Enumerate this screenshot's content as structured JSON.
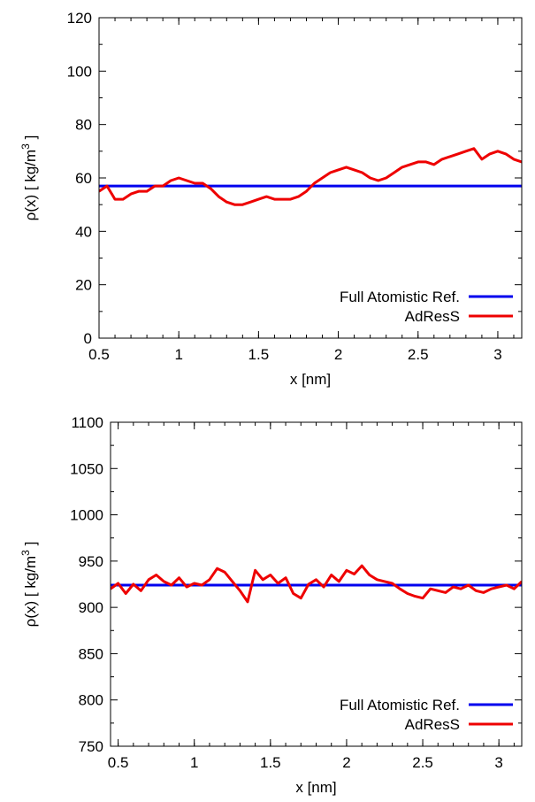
{
  "chart_data": [
    {
      "type": "line",
      "xlabel": "x [nm]",
      "ylabel": "ρ(x) [ kg/m",
      "ylabel_sup": "3",
      "ylabel_end": " ]",
      "xlim": [
        0.5,
        3.15
      ],
      "ylim": [
        0,
        120
      ],
      "xticks": [
        0.5,
        1,
        1.5,
        2,
        2.5,
        3
      ],
      "xtick_labels": [
        "0.5",
        "1",
        "1.5",
        "2",
        "2.5",
        "3"
      ],
      "yticks": [
        0,
        20,
        40,
        60,
        80,
        100,
        120
      ],
      "ytick_labels": [
        "0",
        "20",
        "40",
        "60",
        "80",
        "100",
        "120"
      ],
      "legend_position": "bottom-right",
      "series": [
        {
          "name": "Full Atomistic Ref.",
          "color": "#0000ee",
          "x": [
            0.5,
            3.15
          ],
          "y": [
            57,
            57
          ]
        },
        {
          "name": "AdResS",
          "color": "#ee0000",
          "x": [
            0.5,
            0.55,
            0.6,
            0.65,
            0.7,
            0.75,
            0.8,
            0.85,
            0.9,
            0.95,
            1.0,
            1.05,
            1.1,
            1.15,
            1.2,
            1.25,
            1.3,
            1.35,
            1.4,
            1.45,
            1.5,
            1.55,
            1.6,
            1.65,
            1.7,
            1.75,
            1.8,
            1.85,
            1.9,
            1.95,
            2.0,
            2.05,
            2.1,
            2.15,
            2.2,
            2.25,
            2.3,
            2.35,
            2.4,
            2.45,
            2.5,
            2.55,
            2.6,
            2.65,
            2.7,
            2.75,
            2.8,
            2.85,
            2.9,
            2.95,
            3.0,
            3.05,
            3.1,
            3.15
          ],
          "y": [
            55,
            57,
            52,
            52,
            54,
            55,
            55,
            57,
            57,
            59,
            60,
            59,
            58,
            58,
            56,
            53,
            51,
            50,
            50,
            51,
            52,
            53,
            52,
            52,
            52,
            53,
            55,
            58,
            60,
            62,
            63,
            64,
            63,
            62,
            60,
            59,
            60,
            62,
            64,
            65,
            66,
            66,
            65,
            67,
            68,
            69,
            70,
            71,
            67,
            69,
            70,
            69,
            67,
            66
          ]
        }
      ]
    },
    {
      "type": "line",
      "xlabel": "x [nm]",
      "ylabel": "ρ(x) [ kg/m",
      "ylabel_sup": "3",
      "ylabel_end": " ]",
      "xlim": [
        0.45,
        3.15
      ],
      "ylim": [
        750,
        1100
      ],
      "xticks": [
        0.5,
        1,
        1.5,
        2,
        2.5,
        3
      ],
      "xtick_labels": [
        "0.5",
        "1",
        "1.5",
        "2",
        "2.5",
        "3"
      ],
      "yticks": [
        750,
        800,
        850,
        900,
        950,
        1000,
        1050,
        1100
      ],
      "ytick_labels": [
        "750",
        "800",
        "850",
        "900",
        "950",
        "1000",
        "1050",
        "1100"
      ],
      "legend_position": "bottom-right",
      "series": [
        {
          "name": "Full Atomistic Ref.",
          "color": "#0000ee",
          "x": [
            0.45,
            3.15
          ],
          "y": [
            924,
            924
          ]
        },
        {
          "name": "AdResS",
          "color": "#ee0000",
          "x": [
            0.45,
            0.5,
            0.55,
            0.6,
            0.65,
            0.7,
            0.75,
            0.8,
            0.85,
            0.9,
            0.95,
            1.0,
            1.05,
            1.1,
            1.15,
            1.2,
            1.25,
            1.3,
            1.35,
            1.4,
            1.45,
            1.5,
            1.55,
            1.6,
            1.65,
            1.7,
            1.75,
            1.8,
            1.85,
            1.9,
            1.95,
            2.0,
            2.05,
            2.1,
            2.15,
            2.2,
            2.25,
            2.3,
            2.35,
            2.4,
            2.45,
            2.5,
            2.55,
            2.6,
            2.65,
            2.7,
            2.75,
            2.8,
            2.85,
            2.9,
            2.95,
            3.0,
            3.05,
            3.1,
            3.15
          ],
          "y": [
            920,
            926,
            915,
            925,
            918,
            930,
            935,
            928,
            924,
            932,
            922,
            926,
            924,
            930,
            942,
            938,
            928,
            918,
            906,
            940,
            930,
            935,
            926,
            932,
            915,
            910,
            925,
            930,
            922,
            935,
            928,
            940,
            936,
            945,
            935,
            930,
            928,
            926,
            920,
            915,
            912,
            910,
            920,
            918,
            916,
            922,
            920,
            924,
            918,
            916,
            920,
            922,
            924,
            920,
            928
          ]
        }
      ]
    }
  ]
}
